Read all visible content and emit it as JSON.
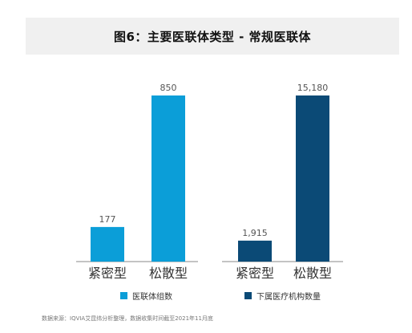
{
  "title": "图6：主要医联体类型 - 常规医联体",
  "source": "数据来源：IQVIA艾昆纬分析整理，数据收集时间截至2021年11月底",
  "colors": {
    "series1": "#0b9ed8",
    "series2": "#0b4a76"
  },
  "chart_data": [
    {
      "type": "bar",
      "categories": [
        "紧密型",
        "松散型"
      ],
      "series": [
        {
          "name": "医联体组数",
          "values": [
            177,
            850
          ],
          "labels": [
            "177",
            "850"
          ]
        }
      ]
    },
    {
      "type": "bar",
      "categories": [
        "紧密型",
        "松散型"
      ],
      "series": [
        {
          "name": "下属医疗机构数量",
          "values": [
            1915,
            15180
          ],
          "labels": [
            "1,915",
            "15,180"
          ]
        }
      ]
    }
  ]
}
